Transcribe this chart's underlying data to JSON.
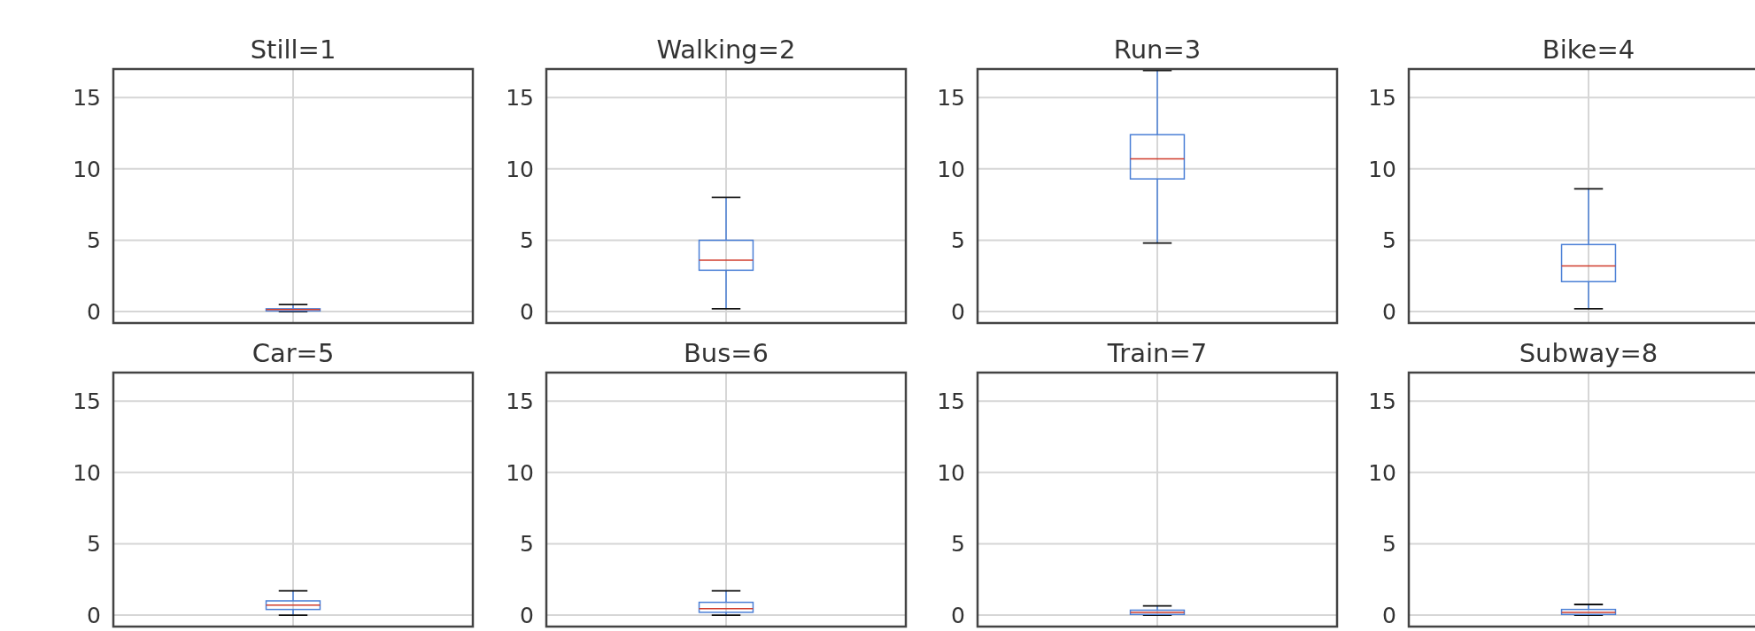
{
  "chart_data": [
    {
      "type": "box",
      "title": "Still=1",
      "categories": [
        null
      ],
      "series": [
        {
          "color": "#4a7fd6",
          "boxes": [
            {
              "low": 0,
              "q1": 0.05,
              "median": 0.15,
              "q3": 0.2,
              "high": 0.5
            }
          ]
        }
      ],
      "ylim": [
        -0.8,
        17
      ],
      "yticks": [
        0,
        5,
        10,
        15
      ],
      "grid": true,
      "tick_labels": "y"
    },
    {
      "type": "box",
      "title": "Walking=2",
      "categories": [
        null
      ],
      "series": [
        {
          "color": "#4a7fd6",
          "boxes": [
            {
              "low": 0.2,
              "q1": 2.9,
              "median": 3.6,
              "q3": 5.0,
              "high": 8.0
            }
          ]
        }
      ],
      "ylim": [
        -0.8,
        17
      ],
      "yticks": [
        0,
        5,
        10,
        15
      ],
      "grid": true,
      "tick_labels": "y"
    },
    {
      "type": "box",
      "title": "Run=3",
      "categories": [
        null
      ],
      "series": [
        {
          "color": "#4a7fd6",
          "boxes": [
            {
              "low": 4.8,
              "q1": 9.3,
              "median": 10.7,
              "q3": 12.4,
              "high": 16.9
            }
          ]
        }
      ],
      "ylim": [
        -0.8,
        17
      ],
      "yticks": [
        0,
        5,
        10,
        15
      ],
      "grid": true,
      "tick_labels": "y"
    },
    {
      "type": "box",
      "title": "Bike=4",
      "categories": [
        null
      ],
      "series": [
        {
          "color": "#4a7fd6",
          "boxes": [
            {
              "low": 0.2,
              "q1": 2.1,
              "median": 3.2,
              "q3": 4.7,
              "high": 8.6
            }
          ]
        }
      ],
      "ylim": [
        -0.8,
        17
      ],
      "yticks": [
        0,
        5,
        10,
        15
      ],
      "grid": true,
      "tick_labels": "y"
    },
    {
      "type": "box",
      "title": "Car=5",
      "categories": [
        null
      ],
      "series": [
        {
          "color": "#4a7fd6",
          "boxes": [
            {
              "low": 0,
              "q1": 0.4,
              "median": 0.7,
              "q3": 1.0,
              "high": 1.7
            }
          ]
        }
      ],
      "ylim": [
        -0.8,
        17
      ],
      "yticks": [
        0,
        5,
        10,
        15
      ],
      "grid": true,
      "tick_labels": "y"
    },
    {
      "type": "box",
      "title": "Bus=6",
      "categories": [
        null
      ],
      "series": [
        {
          "color": "#4a7fd6",
          "boxes": [
            {
              "low": 0,
              "q1": 0.2,
              "median": 0.45,
              "q3": 0.9,
              "high": 1.7
            }
          ]
        }
      ],
      "ylim": [
        -0.8,
        17
      ],
      "yticks": [
        0,
        5,
        10,
        15
      ],
      "grid": true,
      "tick_labels": "y"
    },
    {
      "type": "box",
      "title": "Train=7",
      "categories": [
        null
      ],
      "series": [
        {
          "color": "#4a7fd6",
          "boxes": [
            {
              "low": 0,
              "q1": 0.05,
              "median": 0.2,
              "q3": 0.35,
              "high": 0.65
            }
          ]
        }
      ],
      "ylim": [
        -0.8,
        17
      ],
      "yticks": [
        0,
        5,
        10,
        15
      ],
      "grid": true,
      "tick_labels": "y"
    },
    {
      "type": "box",
      "title": "Subway=8",
      "categories": [
        null
      ],
      "series": [
        {
          "color": "#4a7fd6",
          "boxes": [
            {
              "low": 0,
              "q1": 0.05,
              "median": 0.2,
              "q3": 0.4,
              "high": 0.75
            }
          ]
        }
      ],
      "ylim": [
        -0.8,
        17
      ],
      "yticks": [
        0,
        5,
        10,
        15
      ],
      "grid": true,
      "tick_labels": "y"
    }
  ]
}
